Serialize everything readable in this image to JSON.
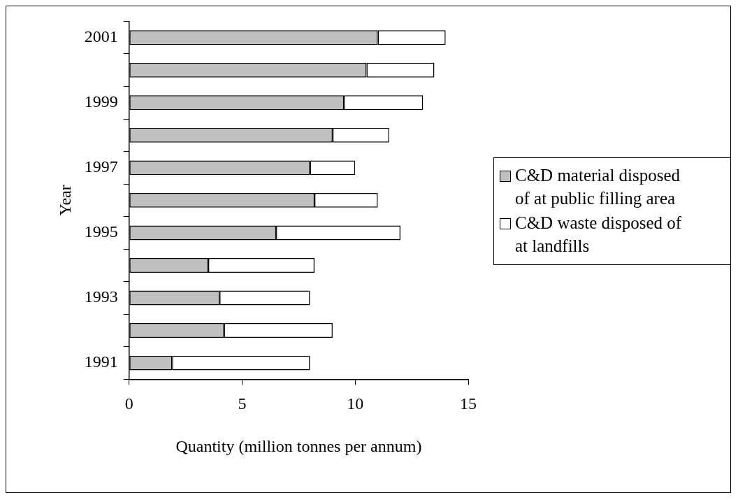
{
  "chart_data": {
    "type": "bar",
    "orientation": "horizontal",
    "stacked": true,
    "xlabel": "Quantity (million tonnes per annum)",
    "ylabel": "Year",
    "categories": [
      "2001",
      null,
      "1999",
      null,
      "1997",
      null,
      "1995",
      null,
      "1993",
      null,
      "1991"
    ],
    "series": [
      {
        "name": "C&D material disposed of at public filling area",
        "color": "#c0c0c0",
        "values": [
          11.0,
          10.5,
          9.5,
          9.0,
          8.0,
          8.2,
          6.5,
          3.5,
          4.0,
          4.2,
          1.9
        ]
      },
      {
        "name": "C&D waste disposed of at landfills",
        "color": "#ffffff",
        "values": [
          3.0,
          3.0,
          3.5,
          2.5,
          2.0,
          2.8,
          5.5,
          4.7,
          4.0,
          4.8,
          6.1
        ]
      }
    ],
    "xlim": [
      0,
      15
    ],
    "xticks": [
      0,
      5,
      10,
      15
    ],
    "grid": false,
    "legend": "right"
  }
}
